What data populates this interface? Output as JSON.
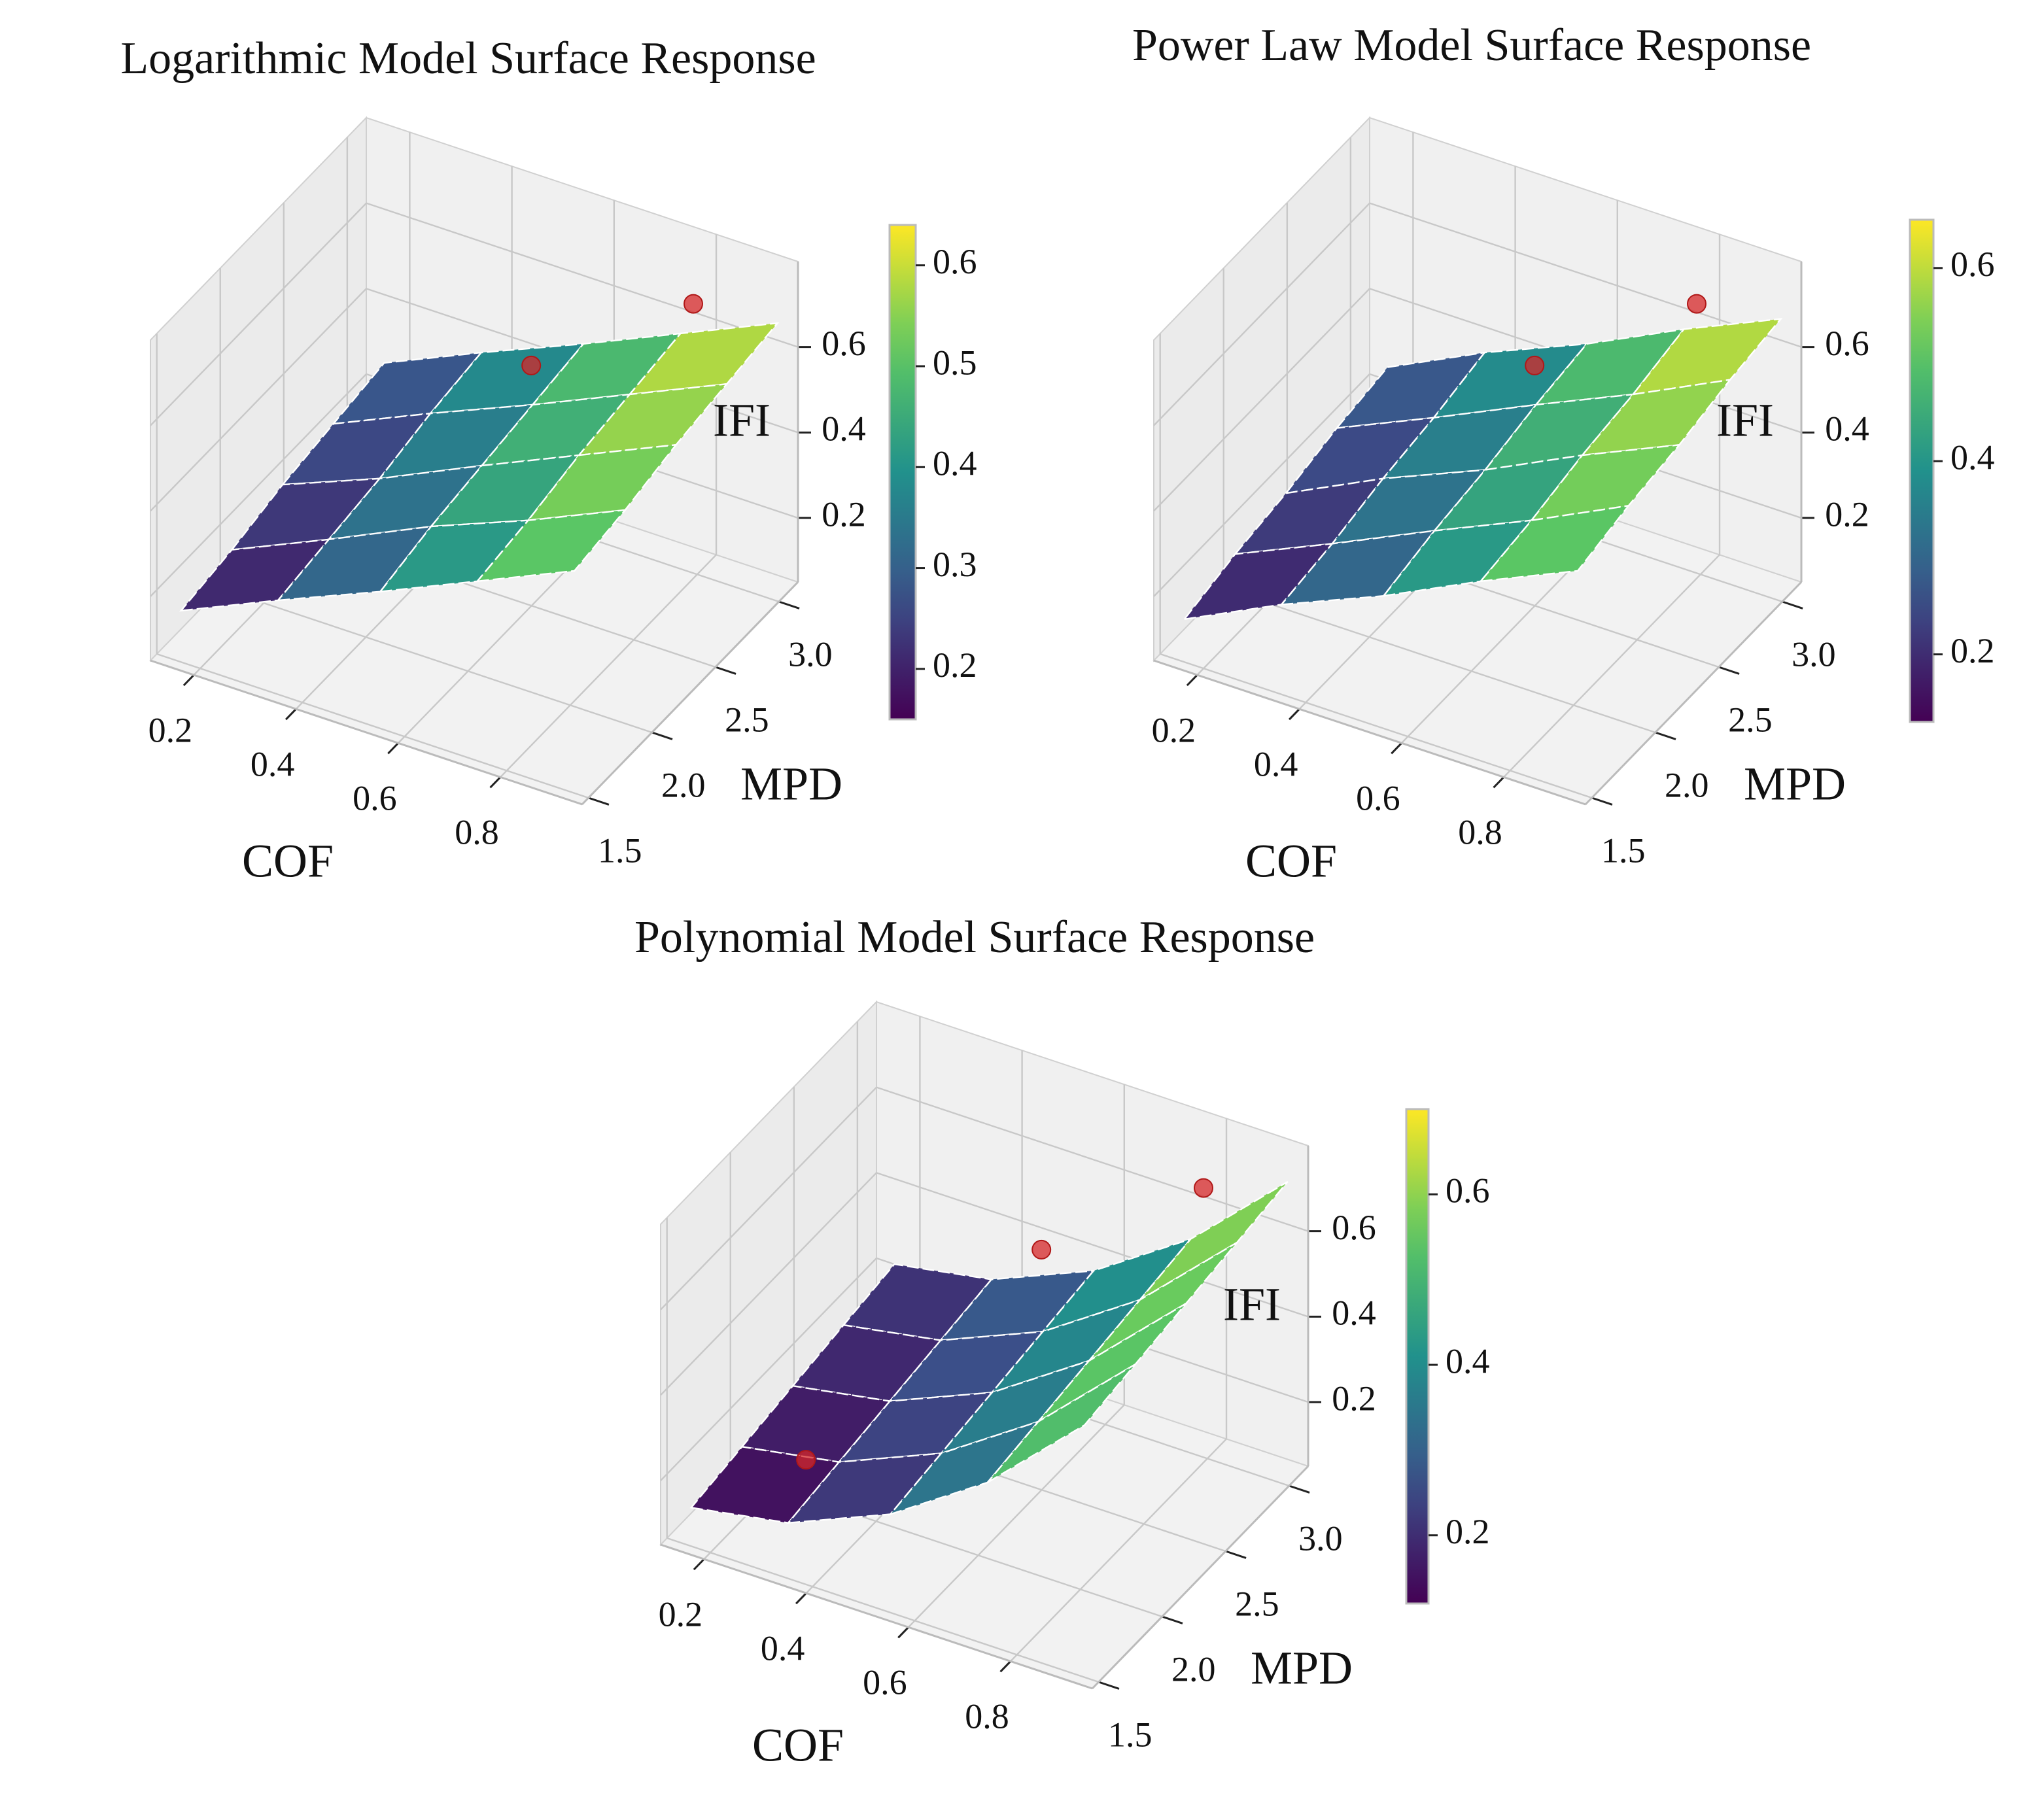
{
  "chart_data": [
    {
      "type": "surface3d",
      "title": "Logarithmic Model Surface Response",
      "xlabel": "COF",
      "ylabel": "MPD",
      "zlabel": "IFI",
      "xlim": [
        0.115,
        0.96
      ],
      "ylim": [
        1.45,
        3.15
      ],
      "zlim": [
        0.05,
        0.8
      ],
      "xticks": [
        0.2,
        0.4,
        0.6,
        0.8
      ],
      "yticks": [
        1.5,
        {
          "value": 2,
          "label": "2.0"
        },
        2.5,
        {
          "value": 3,
          "label": "3.0"
        }
      ],
      "zticks": [
        0.2,
        0.4,
        0.6
      ],
      "colormap": "viridis",
      "clim": [
        0.15,
        0.64
      ],
      "cticks": [
        0.2,
        0.3,
        0.4,
        0.5,
        0.6
      ],
      "surface": {
        "x": [
          0.15,
          0.34,
          0.54,
          0.73,
          0.92
        ],
        "y": [
          1.55,
          1.95,
          2.35,
          2.75,
          3.15
        ],
        "z": [
          [
            0.15,
            0.25,
            0.35,
            0.45,
            0.55
          ],
          [
            0.17,
            0.27,
            0.38,
            0.47,
            0.57
          ],
          [
            0.2,
            0.29,
            0.4,
            0.5,
            0.6
          ],
          [
            0.22,
            0.32,
            0.42,
            0.52,
            0.62
          ],
          [
            0.24,
            0.34,
            0.44,
            0.54,
            0.64
          ]
        ]
      },
      "points": {
        "color": "#d62728",
        "x": [
          0.78,
          0.5,
          0.7,
          0.65,
          0.7,
          0.5,
          0.4,
          0.3
        ],
        "y": [
          3.05,
          2.9,
          2.7,
          2.3,
          2.0,
          2.0,
          1.95,
          1.85
        ],
        "z": [
          0.66,
          0.45,
          0.4,
          0.33,
          0.38,
          0.25,
          0.2,
          0.2
        ]
      }
    },
    {
      "type": "surface3d",
      "title": "Power Law Model Surface Response",
      "xlabel": "COF",
      "ylabel": "MPD",
      "zlabel": "IFI",
      "xlim": [
        0.115,
        0.96
      ],
      "ylim": [
        1.45,
        3.15
      ],
      "zlim": [
        0.05,
        0.8
      ],
      "xticks": [
        0.2,
        0.4,
        0.6,
        0.8
      ],
      "yticks": [
        1.5,
        {
          "value": 2,
          "label": "2.0"
        },
        2.5,
        {
          "value": 3,
          "label": "3.0"
        }
      ],
      "zticks": [
        0.2,
        0.4,
        0.6
      ],
      "colormap": "viridis",
      "clim": [
        0.13,
        0.65
      ],
      "cticks": [
        0.2,
        0.4,
        0.6
      ],
      "surface": {
        "x": [
          0.15,
          0.34,
          0.54,
          0.73,
          0.92
        ],
        "y": [
          1.55,
          1.95,
          2.35,
          2.75,
          3.15
        ],
        "z": [
          [
            0.13,
            0.24,
            0.34,
            0.45,
            0.55
          ],
          [
            0.16,
            0.26,
            0.37,
            0.47,
            0.58
          ],
          [
            0.18,
            0.29,
            0.39,
            0.5,
            0.6
          ],
          [
            0.21,
            0.31,
            0.42,
            0.52,
            0.63
          ],
          [
            0.23,
            0.34,
            0.44,
            0.55,
            0.65
          ]
        ]
      },
      "points": {
        "color": "#d62728",
        "x": [
          0.78,
          0.5,
          0.7,
          0.65,
          0.7,
          0.5,
          0.4,
          0.3
        ],
        "y": [
          3.05,
          2.9,
          2.7,
          2.3,
          2.0,
          2.0,
          1.95,
          1.85
        ],
        "z": [
          0.66,
          0.45,
          0.4,
          0.33,
          0.38,
          0.25,
          0.2,
          0.2
        ]
      }
    },
    {
      "type": "surface3d",
      "title": "Polynomial Model Surface Response",
      "xlabel": "COF",
      "ylabel": "MPD",
      "zlabel": "IFI",
      "xlim": [
        0.115,
        0.96
      ],
      "ylim": [
        1.45,
        3.15
      ],
      "zlim": [
        0.05,
        0.8
      ],
      "xticks": [
        0.2,
        0.4,
        0.6,
        0.8
      ],
      "yticks": [
        1.5,
        {
          "value": 2,
          "label": "2.0"
        },
        2.5,
        {
          "value": 3,
          "label": "3.0"
        }
      ],
      "zticks": [
        0.2,
        0.4,
        0.6
      ],
      "colormap": "viridis",
      "clim": [
        0.12,
        0.7
      ],
      "cticks": [
        0.2,
        0.4,
        0.6
      ],
      "surface": {
        "x": [
          0.15,
          0.34,
          0.54,
          0.73,
          0.92
        ],
        "y": [
          1.55,
          1.95,
          2.35,
          2.75,
          3.15
        ],
        "z": [
          [
            0.12,
            0.16,
            0.26,
            0.41,
            0.62
          ],
          [
            0.14,
            0.18,
            0.28,
            0.43,
            0.64
          ],
          [
            0.16,
            0.2,
            0.3,
            0.45,
            0.66
          ],
          [
            0.18,
            0.22,
            0.32,
            0.47,
            0.68
          ],
          [
            0.2,
            0.24,
            0.34,
            0.49,
            0.7
          ]
        ]
      },
      "points": {
        "color": "#d62728",
        "x": [
          0.78,
          0.5,
          0.7,
          0.65,
          0.7,
          0.5,
          0.4,
          0.3
        ],
        "y": [
          3.05,
          2.9,
          2.7,
          2.3,
          2.0,
          2.0,
          1.95,
          1.85
        ],
        "z": [
          0.66,
          0.45,
          0.4,
          0.33,
          0.38,
          0.25,
          0.2,
          0.2
        ]
      }
    }
  ]
}
